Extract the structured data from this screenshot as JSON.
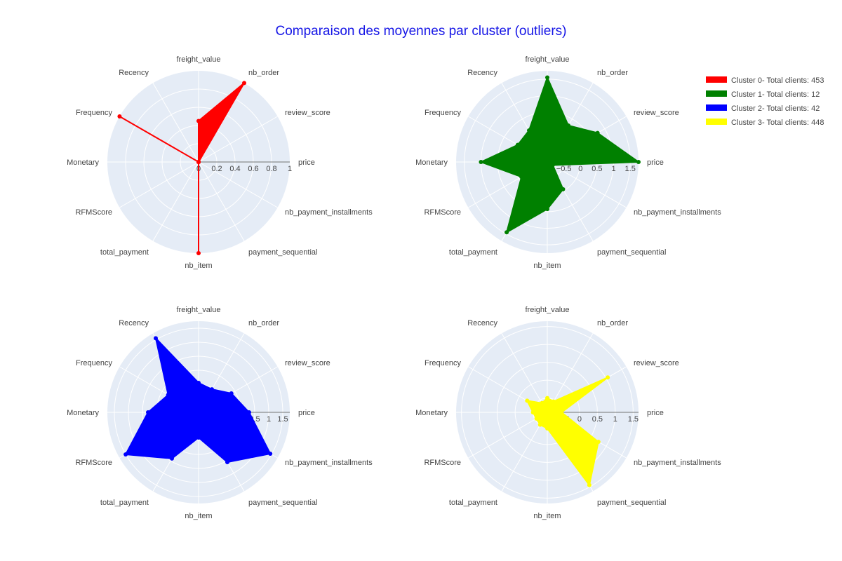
{
  "chart_data": {
    "type": "radar",
    "title": "Comparaison des moyennes par cluster (outliers)",
    "axes": [
      "price",
      "review_score",
      "nb_order",
      "freight_value",
      "Recency",
      "Frequency",
      "Monetary",
      "RFMScore",
      "total_payment",
      "nb_item",
      "payment_sequential",
      "nb_payment_installments"
    ],
    "legend_position": "top-right",
    "series": [
      {
        "name": "Cluster 0- Total clients: 453",
        "color": "#ff0000",
        "values": [
          0.0,
          0.0,
          1.0,
          0.45,
          0.0,
          1.0,
          0.0,
          0.0,
          0.0,
          1.0,
          0.0,
          0.0
        ],
        "radial_range": [
          0,
          1
        ],
        "ticks": [
          "0",
          "0.2",
          "0.4",
          "0.6",
          "0.8",
          "1"
        ]
      },
      {
        "name": "Cluster 1- Total clients: 12",
        "color": "#008000",
        "values": [
          1.75,
          0.75,
          0.27,
          1.55,
          0.1,
          0.03,
          1.0,
          -0.1,
          1.45,
          0.42,
          -0.05,
          -0.81
        ],
        "radial_range": [
          -1.0,
          1.75
        ],
        "ticks": [
          "−1",
          "−0.5",
          "0",
          "0.5",
          "1",
          "1.5"
        ]
      },
      {
        "name": "Cluster 2- Total clients: 42",
        "color": "#0000ff",
        "values": [
          0.3,
          -0.15,
          -0.55,
          -0.45,
          1.55,
          -0.25,
          0.3,
          1.5,
          0.4,
          -0.6,
          0.55,
          1.45
        ],
        "radial_range": [
          -1.5,
          1.75
        ],
        "ticks": [
          "−1.5",
          "−1",
          "−0.5",
          "0",
          "0.5",
          "1",
          "1.5"
        ]
      },
      {
        "name": "Cluster 3- Total clients: 448",
        "color": "#ffff00",
        "values": [
          -0.5,
          1.05,
          -0.55,
          -0.5,
          -0.6,
          -0.25,
          -0.5,
          -0.55,
          -0.5,
          -0.45,
          1.45,
          0.75
        ],
        "radial_range": [
          -0.9,
          1.65
        ],
        "ticks": [
          "−0.5",
          "0",
          "0.5",
          "1",
          "1.5"
        ]
      }
    ]
  }
}
